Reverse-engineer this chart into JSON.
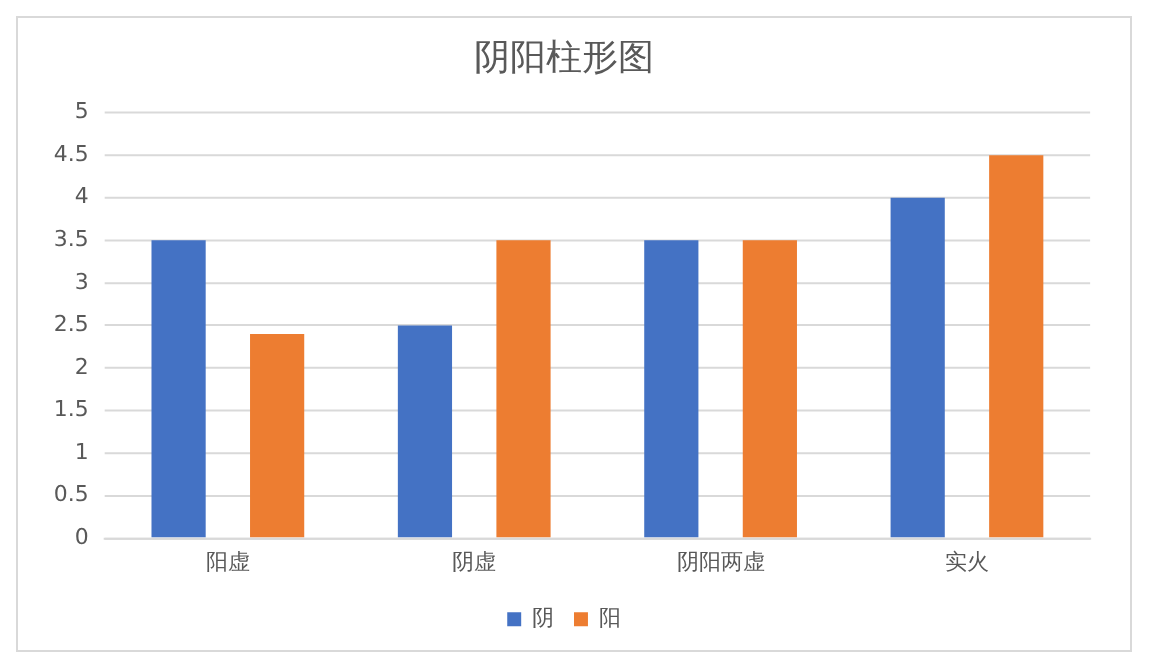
{
  "chart_data": {
    "type": "bar",
    "title": "阴阳柱形图",
    "categories": [
      "阳虚",
      "阴虚",
      "阴阳两虚",
      "实火"
    ],
    "series": [
      {
        "name": "阴",
        "color": "#4472c4",
        "values": [
          3.5,
          2.5,
          3.5,
          4
        ]
      },
      {
        "name": "阳",
        "color": "#ed7d31",
        "values": [
          2.4,
          3.5,
          3.5,
          4.5
        ]
      }
    ],
    "ylim": [
      0,
      5
    ],
    "yticks": [
      0,
      0.5,
      1,
      1.5,
      2,
      2.5,
      3,
      3.5,
      4,
      4.5,
      5
    ],
    "grid": "y",
    "legend": "bottom"
  }
}
